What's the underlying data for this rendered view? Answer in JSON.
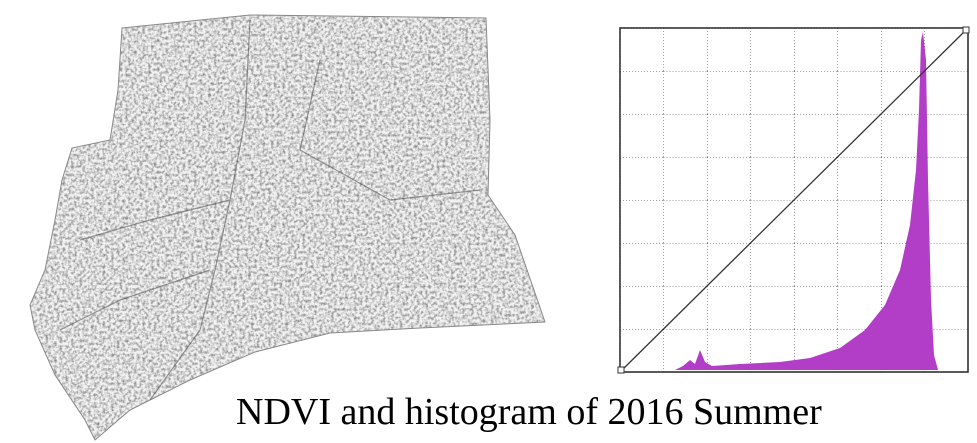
{
  "caption": "NDVI and histogram of 2016 Summer"
}
